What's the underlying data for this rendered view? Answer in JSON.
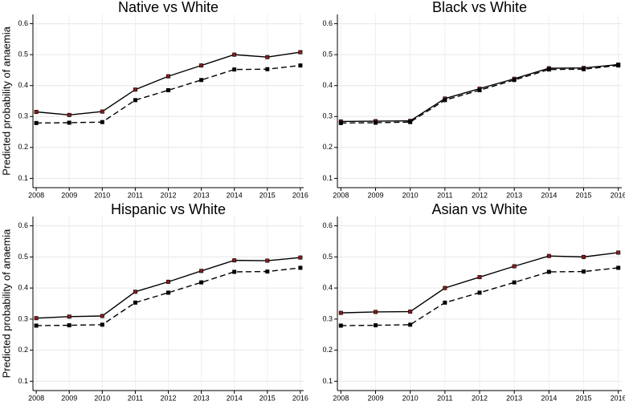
{
  "chart_data": [
    {
      "type": "line",
      "title": "Native vs White",
      "ylabel": "Predicted probability of anaemia",
      "x": [
        2008,
        2009,
        2010,
        2011,
        2012,
        2013,
        2014,
        2015,
        2016
      ],
      "series": [
        {
          "color": "#000000",
          "marker_color": "#8b1a1a",
          "line_style": "solid",
          "values": [
            0.315,
            0.305,
            0.316,
            0.387,
            0.43,
            0.465,
            0.5,
            0.492,
            0.508
          ]
        },
        {
          "color": "#000000",
          "marker_color": "#000000",
          "line_style": "dashed",
          "values": [
            0.279,
            0.28,
            0.282,
            0.353,
            0.385,
            0.418,
            0.452,
            0.453,
            0.465
          ]
        }
      ],
      "xlim": [
        2007.9,
        2016.1
      ],
      "xticks": [
        2008,
        2009,
        2010,
        2011,
        2012,
        2013,
        2014,
        2015,
        2016
      ],
      "ylim": [
        0.07,
        0.63
      ],
      "yticks": [
        0.1,
        0.2,
        0.3,
        0.4,
        0.5,
        0.6
      ],
      "grid": true
    },
    {
      "type": "line",
      "title": "Black vs White",
      "x": [
        2008,
        2009,
        2010,
        2011,
        2012,
        2013,
        2014,
        2015,
        2016
      ],
      "series": [
        {
          "color": "#000000",
          "marker_color": "#8b1a1a",
          "line_style": "solid",
          "values": [
            0.284,
            0.285,
            0.286,
            0.358,
            0.39,
            0.422,
            0.456,
            0.457,
            0.468
          ]
        },
        {
          "color": "#000000",
          "marker_color": "#000000",
          "line_style": "dashed",
          "values": [
            0.279,
            0.28,
            0.282,
            0.353,
            0.385,
            0.418,
            0.452,
            0.453,
            0.465
          ]
        }
      ],
      "xlim": [
        2007.9,
        2016.1
      ],
      "xticks": [
        2008,
        2009,
        2010,
        2011,
        2012,
        2013,
        2014,
        2015,
        2016
      ],
      "ylim": [
        0.07,
        0.63
      ],
      "yticks": [
        0.1,
        0.2,
        0.3,
        0.4,
        0.5,
        0.6
      ],
      "grid": true
    },
    {
      "type": "line",
      "title": "Hispanic vs White",
      "ylabel": "Predicted probability of anaemia",
      "x": [
        2008,
        2009,
        2010,
        2011,
        2012,
        2013,
        2014,
        2015,
        2016
      ],
      "series": [
        {
          "color": "#000000",
          "marker_color": "#8b1a1a",
          "line_style": "solid",
          "values": [
            0.303,
            0.308,
            0.31,
            0.388,
            0.42,
            0.455,
            0.489,
            0.488,
            0.498
          ]
        },
        {
          "color": "#000000",
          "marker_color": "#000000",
          "line_style": "dashed",
          "values": [
            0.279,
            0.28,
            0.282,
            0.353,
            0.385,
            0.418,
            0.452,
            0.453,
            0.465
          ]
        }
      ],
      "xlim": [
        2007.9,
        2016.1
      ],
      "xticks": [
        2008,
        2009,
        2010,
        2011,
        2012,
        2013,
        2014,
        2015,
        2016
      ],
      "ylim": [
        0.07,
        0.63
      ],
      "yticks": [
        0.1,
        0.2,
        0.3,
        0.4,
        0.5,
        0.6
      ],
      "grid": true
    },
    {
      "type": "line",
      "title": "Asian vs White",
      "x": [
        2008,
        2009,
        2010,
        2011,
        2012,
        2013,
        2014,
        2015,
        2016
      ],
      "series": [
        {
          "color": "#000000",
          "marker_color": "#8b1a1a",
          "line_style": "solid",
          "values": [
            0.32,
            0.323,
            0.324,
            0.4,
            0.435,
            0.47,
            0.503,
            0.5,
            0.514
          ]
        },
        {
          "color": "#000000",
          "marker_color": "#000000",
          "line_style": "dashed",
          "values": [
            0.279,
            0.28,
            0.282,
            0.353,
            0.385,
            0.418,
            0.452,
            0.453,
            0.465
          ]
        }
      ],
      "xlim": [
        2007.9,
        2016.1
      ],
      "xticks": [
        2008,
        2009,
        2010,
        2011,
        2012,
        2013,
        2014,
        2015,
        2016
      ],
      "ylim": [
        0.07,
        0.63
      ],
      "yticks": [
        0.1,
        0.2,
        0.3,
        0.4,
        0.5,
        0.6
      ],
      "grid": true
    }
  ]
}
